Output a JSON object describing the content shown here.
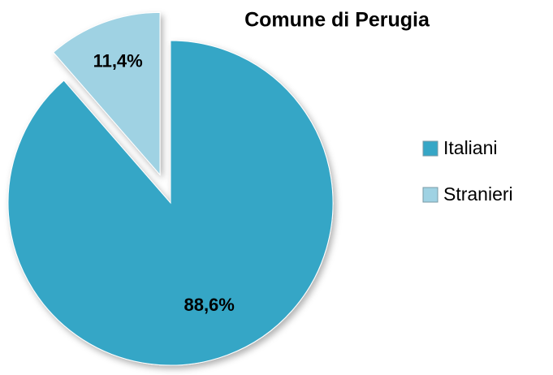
{
  "chart_data": {
    "type": "pie",
    "title": "Comune di Perugia",
    "categories": [
      "Italiani",
      "Stranieri"
    ],
    "values": [
      88.6,
      11.4
    ],
    "value_labels": [
      "88,6%",
      "11,4%"
    ],
    "colors": [
      "#36a6c6",
      "#9fd2e3"
    ],
    "legend": "right"
  }
}
